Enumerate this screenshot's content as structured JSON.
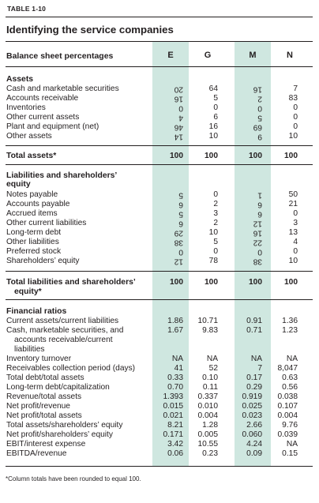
{
  "table_tag": "TABLE 1-10",
  "title": "Identifying the service companies",
  "header": {
    "label": "Balance sheet percentages",
    "columns": [
      "E",
      "G",
      "M",
      "N"
    ]
  },
  "assets": {
    "heading": "Assets",
    "rows": [
      {
        "label": "Cash and marketable securities",
        "values": [
          "20",
          "64",
          "16",
          "7"
        ]
      },
      {
        "label": "Accounts receivable",
        "values": [
          "16",
          "5",
          "2",
          "83"
        ]
      },
      {
        "label": "Inventories",
        "values": [
          "0",
          "0",
          "0",
          "0"
        ]
      },
      {
        "label": "Other current assets",
        "values": [
          "4",
          "6",
          "5",
          "0"
        ]
      },
      {
        "label": "Plant and equipment (net)",
        "values": [
          "46",
          "16",
          "69",
          "0"
        ]
      },
      {
        "label": "Other assets",
        "values": [
          "14",
          "10",
          "9",
          "10"
        ]
      }
    ],
    "total": {
      "label": "Total assets*",
      "values": [
        "100",
        "100",
        "100",
        "100"
      ]
    }
  },
  "liabilities": {
    "heading_line1": "Liabilities and shareholders’",
    "heading_line2": "equity",
    "rows": [
      {
        "label": "Notes payable",
        "values": [
          "5",
          "0",
          "1",
          "50"
        ]
      },
      {
        "label": "Accounts payable",
        "values": [
          "6",
          "2",
          "6",
          "21"
        ]
      },
      {
        "label": "Accrued items",
        "values": [
          "5",
          "3",
          "6",
          "0"
        ]
      },
      {
        "label": "Other current liabilities",
        "values": [
          "6",
          "2",
          "12",
          "3"
        ]
      },
      {
        "label": "Long-term debt",
        "values": [
          "29",
          "10",
          "16",
          "13"
        ]
      },
      {
        "label": "Other liabilities",
        "values": [
          "38",
          "5",
          "22",
          "4"
        ]
      },
      {
        "label": "Preferred stock",
        "values": [
          "0",
          "0",
          "0",
          "0"
        ]
      },
      {
        "label": "Shareholders’ equity",
        "values": [
          "12",
          "78",
          "38",
          "10"
        ]
      }
    ],
    "total": {
      "label_line1": "Total liabilities and shareholders’",
      "label_line2": "equity*",
      "values": [
        "100",
        "100",
        "100",
        "100"
      ]
    }
  },
  "ratios": {
    "heading": "Financial ratios",
    "rows": [
      {
        "label": "Current assets/current liabilities",
        "values": [
          "1.86",
          "10.71",
          "0.91",
          "1.36"
        ]
      },
      {
        "label": "Cash, marketable securities, and",
        "label_cont": [
          "accounts receivable/current",
          "liabilities"
        ],
        "values": [
          "1.67",
          "9.83",
          "0.71",
          "1.23"
        ]
      },
      {
        "label": "Inventory turnover",
        "values": [
          "NA",
          "NA",
          "NA",
          "NA"
        ]
      },
      {
        "label": "Receivables collection period (days)",
        "values": [
          "41",
          "52",
          "7",
          "8,047"
        ]
      },
      {
        "label": "Total debt/total assets",
        "values": [
          "0.33",
          "0.10",
          "0.17",
          "0.63"
        ]
      },
      {
        "label": "Long-term debt/capitalization",
        "values": [
          "0.70",
          "0.11",
          "0.29",
          "0.56"
        ]
      },
      {
        "label": "Revenue/total assets",
        "values": [
          "1.393",
          "0.337",
          "0.919",
          "0.038"
        ]
      },
      {
        "label": "Net profit/revenue",
        "values": [
          "0.015",
          "0.010",
          "0.025",
          "0.107"
        ]
      },
      {
        "label": "Net profit/total assets",
        "values": [
          "0.021",
          "0.004",
          "0.023",
          "0.004"
        ]
      },
      {
        "label": "Total assets/shareholders’ equity",
        "values": [
          "8.21",
          "1.28",
          "2.66",
          "9.76"
        ]
      },
      {
        "label": "Net profit/shareholders’ equity",
        "values": [
          "0.171",
          "0.005",
          "0.060",
          "0.039"
        ]
      },
      {
        "label": "EBIT/interest expense",
        "values": [
          "3.42",
          "10.55",
          "4.24",
          "NA"
        ]
      },
      {
        "label": "EBITDA/revenue",
        "values": [
          "0.06",
          "0.23",
          "0.09",
          "0.15"
        ]
      }
    ]
  },
  "footnote": "*Column totals have been rounded to equal 100.",
  "colors": {
    "highlight": "#cfe7e0",
    "text": "#231f20"
  }
}
